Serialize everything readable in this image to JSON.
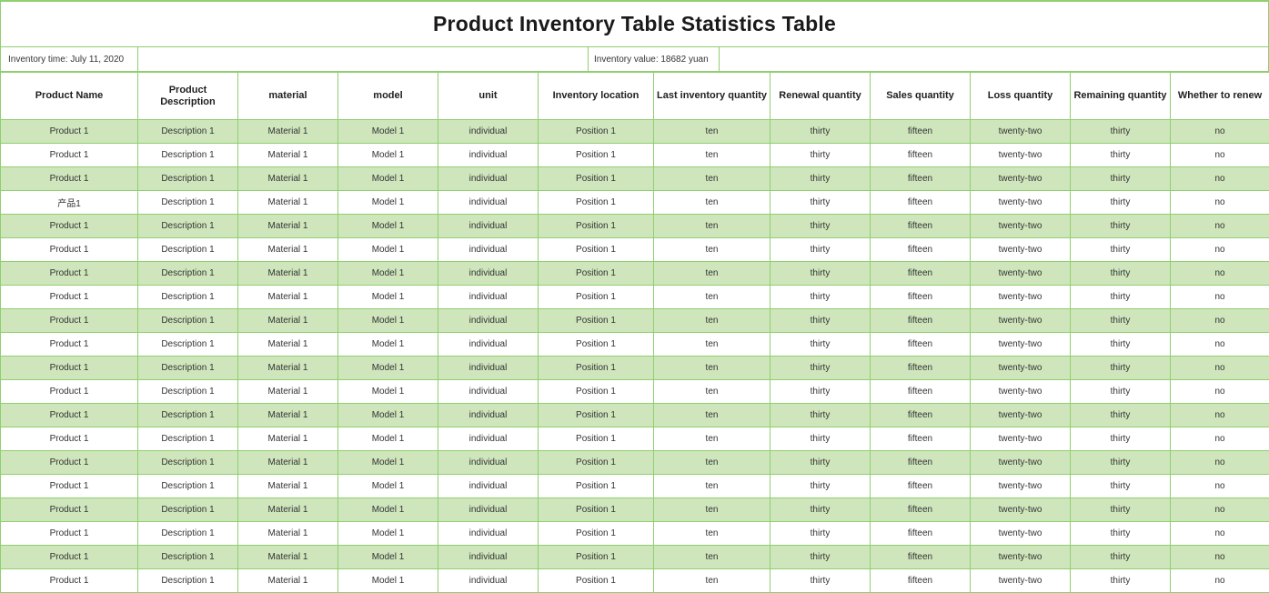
{
  "title": "Product Inventory Table Statistics Table",
  "info": {
    "inventory_time": "Inventory time: July 11, 2020",
    "inventory_value": "Inventory value: 18682 yuan"
  },
  "colors": {
    "border": "#8fcf6e",
    "stripe": "#cfe6bd",
    "background": "#ffffff"
  },
  "columns": [
    "Product Name",
    "Product Description",
    "material",
    "model",
    "unit",
    "Inventory location",
    "Last inventory quantity",
    "Renewal quantity",
    "Sales quantity",
    "Loss quantity",
    "Remaining quantity",
    "Whether to renew"
  ],
  "rows": [
    [
      "Product 1",
      "Description 1",
      "Material 1",
      "Model 1",
      "individual",
      "Position 1",
      "ten",
      "thirty",
      "fifteen",
      "twenty-two",
      "thirty",
      "no"
    ],
    [
      "Product 1",
      "Description 1",
      "Material 1",
      "Model 1",
      "individual",
      "Position 1",
      "ten",
      "thirty",
      "fifteen",
      "twenty-two",
      "thirty",
      "no"
    ],
    [
      "Product 1",
      "Description 1",
      "Material 1",
      "Model 1",
      "individual",
      "Position 1",
      "ten",
      "thirty",
      "fifteen",
      "twenty-two",
      "thirty",
      "no"
    ],
    [
      "产品1",
      "Description 1",
      "Material 1",
      "Model 1",
      "individual",
      "Position 1",
      "ten",
      "thirty",
      "fifteen",
      "twenty-two",
      "thirty",
      "no"
    ],
    [
      "Product 1",
      "Description 1",
      "Material 1",
      "Model 1",
      "individual",
      "Position 1",
      "ten",
      "thirty",
      "fifteen",
      "twenty-two",
      "thirty",
      "no"
    ],
    [
      "Product 1",
      "Description 1",
      "Material 1",
      "Model 1",
      "individual",
      "Position 1",
      "ten",
      "thirty",
      "fifteen",
      "twenty-two",
      "thirty",
      "no"
    ],
    [
      "Product 1",
      "Description 1",
      "Material 1",
      "Model 1",
      "individual",
      "Position 1",
      "ten",
      "thirty",
      "fifteen",
      "twenty-two",
      "thirty",
      "no"
    ],
    [
      "Product 1",
      "Description 1",
      "Material 1",
      "Model 1",
      "individual",
      "Position 1",
      "ten",
      "thirty",
      "fifteen",
      "twenty-two",
      "thirty",
      "no"
    ],
    [
      "Product 1",
      "Description 1",
      "Material 1",
      "Model 1",
      "individual",
      "Position 1",
      "ten",
      "thirty",
      "fifteen",
      "twenty-two",
      "thirty",
      "no"
    ],
    [
      "Product 1",
      "Description 1",
      "Material 1",
      "Model 1",
      "individual",
      "Position 1",
      "ten",
      "thirty",
      "fifteen",
      "twenty-two",
      "thirty",
      "no"
    ],
    [
      "Product 1",
      "Description 1",
      "Material 1",
      "Model 1",
      "individual",
      "Position 1",
      "ten",
      "thirty",
      "fifteen",
      "twenty-two",
      "thirty",
      "no"
    ],
    [
      "Product 1",
      "Description 1",
      "Material 1",
      "Model 1",
      "individual",
      "Position 1",
      "ten",
      "thirty",
      "fifteen",
      "twenty-two",
      "thirty",
      "no"
    ],
    [
      "Product 1",
      "Description 1",
      "Material 1",
      "Model 1",
      "individual",
      "Position 1",
      "ten",
      "thirty",
      "fifteen",
      "twenty-two",
      "thirty",
      "no"
    ],
    [
      "Product 1",
      "Description 1",
      "Material 1",
      "Model 1",
      "individual",
      "Position 1",
      "ten",
      "thirty",
      "fifteen",
      "twenty-two",
      "thirty",
      "no"
    ],
    [
      "Product 1",
      "Description 1",
      "Material 1",
      "Model 1",
      "individual",
      "Position 1",
      "ten",
      "thirty",
      "fifteen",
      "twenty-two",
      "thirty",
      "no"
    ],
    [
      "Product 1",
      "Description 1",
      "Material 1",
      "Model 1",
      "individual",
      "Position 1",
      "ten",
      "thirty",
      "fifteen",
      "twenty-two",
      "thirty",
      "no"
    ],
    [
      "Product 1",
      "Description 1",
      "Material 1",
      "Model 1",
      "individual",
      "Position 1",
      "ten",
      "thirty",
      "fifteen",
      "twenty-two",
      "thirty",
      "no"
    ],
    [
      "Product 1",
      "Description 1",
      "Material 1",
      "Model 1",
      "individual",
      "Position 1",
      "ten",
      "thirty",
      "fifteen",
      "twenty-two",
      "thirty",
      "no"
    ],
    [
      "Product 1",
      "Description 1",
      "Material 1",
      "Model 1",
      "individual",
      "Position 1",
      "ten",
      "thirty",
      "fifteen",
      "twenty-two",
      "thirty",
      "no"
    ],
    [
      "Product 1",
      "Description 1",
      "Material 1",
      "Model 1",
      "individual",
      "Position 1",
      "ten",
      "thirty",
      "fifteen",
      "twenty-two",
      "thirty",
      "no"
    ]
  ]
}
